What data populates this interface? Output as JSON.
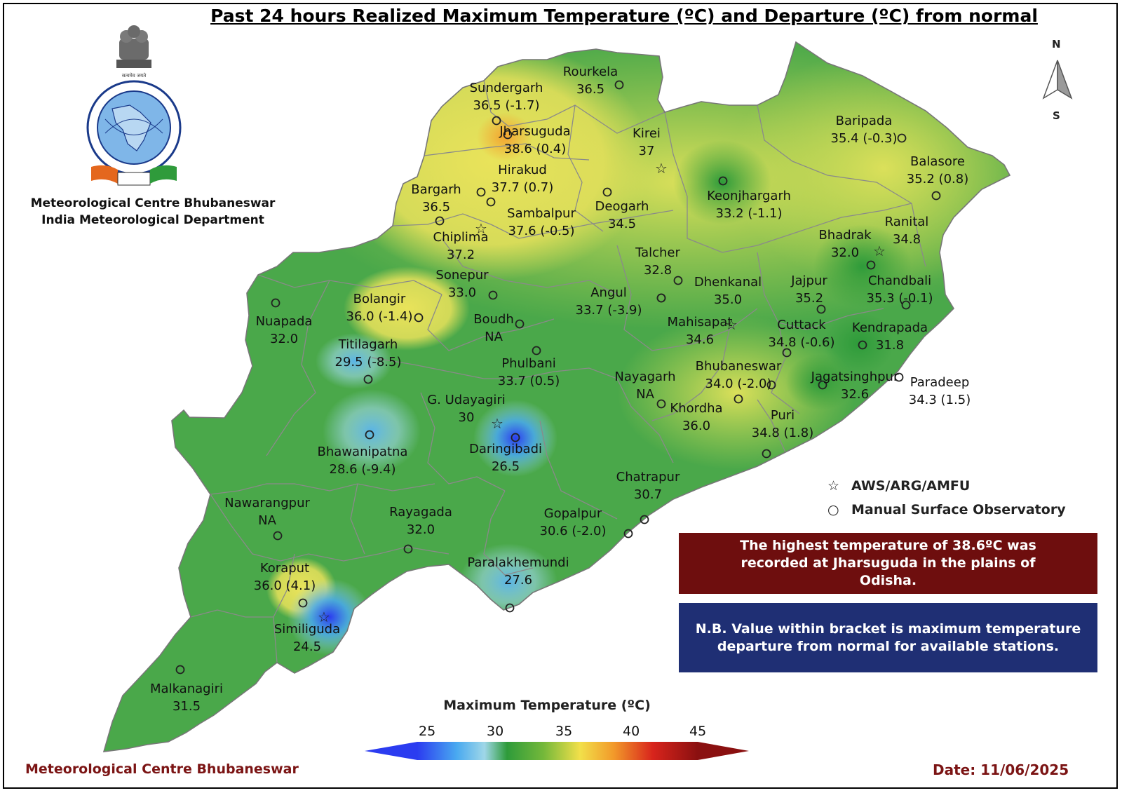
{
  "title": "Past 24 hours Realized Maximum Temperature (ºC) and Departure (ºC) from normal",
  "organization": {
    "line1": "Meteorological Centre Bhubaneswar",
    "line2": "India Meteorological Department",
    "logo_text": [
      "भारत मौसम विज्ञान विभाग",
      "INDIA METEOROLOGICAL DEPARTMENT",
      "आदित्यात् जायते वृष्टिः",
      "सत्यमेव जयते"
    ]
  },
  "compass": {
    "north": "N",
    "south": "S"
  },
  "legend": {
    "aws": {
      "symbol": "☆",
      "label": "AWS/ARG/AMFU"
    },
    "manual": {
      "symbol": "○",
      "label": "Manual Surface Observatory"
    }
  },
  "highlight_note": "The highest temperature of 38.6ºC was recorded at Jharsuguda in the plains of Odisha.",
  "nb_note": "N.B. Value within bracket is maximum temperature departure from normal for available stations.",
  "colorbar": {
    "title": "Maximum Temperature (ºC)",
    "ticks": [
      "25",
      "30",
      "35",
      "40",
      "45"
    ],
    "colors": [
      "#2b3cf0",
      "#49a9f0",
      "#9fd7e8",
      "#2e9b3a",
      "#74b83a",
      "#f2e04a",
      "#f29a2a",
      "#d8241c",
      "#8a1010"
    ]
  },
  "footer": {
    "left": "Meteorological Centre Bhubaneswar",
    "date": "Date: 11/06/2025"
  },
  "colors": {
    "map_green": "#4aa84a",
    "map_yellow": "#e9e35a",
    "map_orange": "#f4a430",
    "map_blue": "#3a6ff0",
    "dark_red_box": "#6e0e0e",
    "navy_box": "#1f2f74"
  },
  "stations": [
    {
      "name": "Rourkela",
      "value": "36.5",
      "marker": "manual"
    },
    {
      "name": "Sundergarh",
      "value": "36.5 (-1.7)",
      "marker": "manual"
    },
    {
      "name": "Jharsuguda",
      "value": "38.6 (0.4)",
      "marker": "manual"
    },
    {
      "name": "Kirei",
      "value": "37",
      "marker": "aws"
    },
    {
      "name": "Hirakud",
      "value": "37.7 (0.7)",
      "marker": "manual"
    },
    {
      "name": "Bargarh",
      "value": "36.5",
      "marker": "manual"
    },
    {
      "name": "Sambalpur",
      "value": "37.6 (-0.5)",
      "marker": "manual"
    },
    {
      "name": "Deogarh",
      "value": "34.5",
      "marker": "manual"
    },
    {
      "name": "Chiplima",
      "value": "37.2",
      "marker": "aws"
    },
    {
      "name": "Keonjhargarh",
      "value": "33.2 (-1.1)",
      "marker": "manual"
    },
    {
      "name": "Baripada",
      "value": "35.4 (-0.3)",
      "marker": "manual"
    },
    {
      "name": "Balasore",
      "value": "35.2 (0.8)",
      "marker": "manual"
    },
    {
      "name": "Ranital",
      "value": "34.8",
      "marker": "aws"
    },
    {
      "name": "Bhadrak",
      "value": "32.0",
      "marker": "manual"
    },
    {
      "name": "Chandbali",
      "value": "35.3 (-0.1)",
      "marker": "manual"
    },
    {
      "name": "Talcher",
      "value": "32.8",
      "marker": "manual"
    },
    {
      "name": "Dhenkanal",
      "value": "35.0",
      "marker": "manual"
    },
    {
      "name": "Jajpur",
      "value": "35.2",
      "marker": "manual"
    },
    {
      "name": "Sonepur",
      "value": "33.0",
      "marker": "manual"
    },
    {
      "name": "Angul",
      "value": "33.7 (-3.9)",
      "marker": "manual"
    },
    {
      "name": "Bolangir",
      "value": "36.0 (-1.4)",
      "marker": "manual"
    },
    {
      "name": "Boudh",
      "value": "NA",
      "marker": "manual"
    },
    {
      "name": "Nuapada",
      "value": "32.0",
      "marker": "manual"
    },
    {
      "name": "Mahisapat",
      "value": "34.6",
      "marker": "aws"
    },
    {
      "name": "Cuttack",
      "value": "34.8 (-0.6)",
      "marker": "manual"
    },
    {
      "name": "Kendrapada",
      "value": "31.8",
      "marker": "manual"
    },
    {
      "name": "Titilagarh",
      "value": "29.5 (-8.5)",
      "marker": "manual"
    },
    {
      "name": "Phulbani",
      "value": "33.7 (0.5)",
      "marker": "manual"
    },
    {
      "name": "Bhubaneswar",
      "value": "34.0 (-2.0)",
      "marker": "manual"
    },
    {
      "name": "Jagatsinghpur",
      "value": "32.6",
      "marker": "manual"
    },
    {
      "name": "Paradeep",
      "value": "34.3 (1.5)",
      "marker": "manual"
    },
    {
      "name": "Nayagarh",
      "value": "NA",
      "marker": "manual"
    },
    {
      "name": "G. Udayagiri",
      "value": "30",
      "marker": "aws"
    },
    {
      "name": "Khordha",
      "value": "36.0",
      "marker": "manual"
    },
    {
      "name": "Puri",
      "value": "34.8 (1.8)",
      "marker": "manual"
    },
    {
      "name": "Bhawanipatna",
      "value": "28.6 (-9.4)",
      "marker": "manual"
    },
    {
      "name": "Daringibadi",
      "value": "26.5",
      "marker": "manual"
    },
    {
      "name": "Chatrapur",
      "value": "30.7",
      "marker": "manual"
    },
    {
      "name": "Nawarangpur",
      "value": "NA",
      "marker": "manual"
    },
    {
      "name": "Rayagada",
      "value": "32.0",
      "marker": "manual"
    },
    {
      "name": "Gopalpur",
      "value": "30.6 (-2.0)",
      "marker": "manual"
    },
    {
      "name": "Koraput",
      "value": "36.0 (4.1)",
      "marker": "manual"
    },
    {
      "name": "Paralakhemundi",
      "value": "27.6",
      "marker": "manual"
    },
    {
      "name": "Similiguda",
      "value": "24.5",
      "marker": "aws"
    },
    {
      "name": "Malkanagiri",
      "value": "31.5",
      "marker": "manual"
    }
  ]
}
